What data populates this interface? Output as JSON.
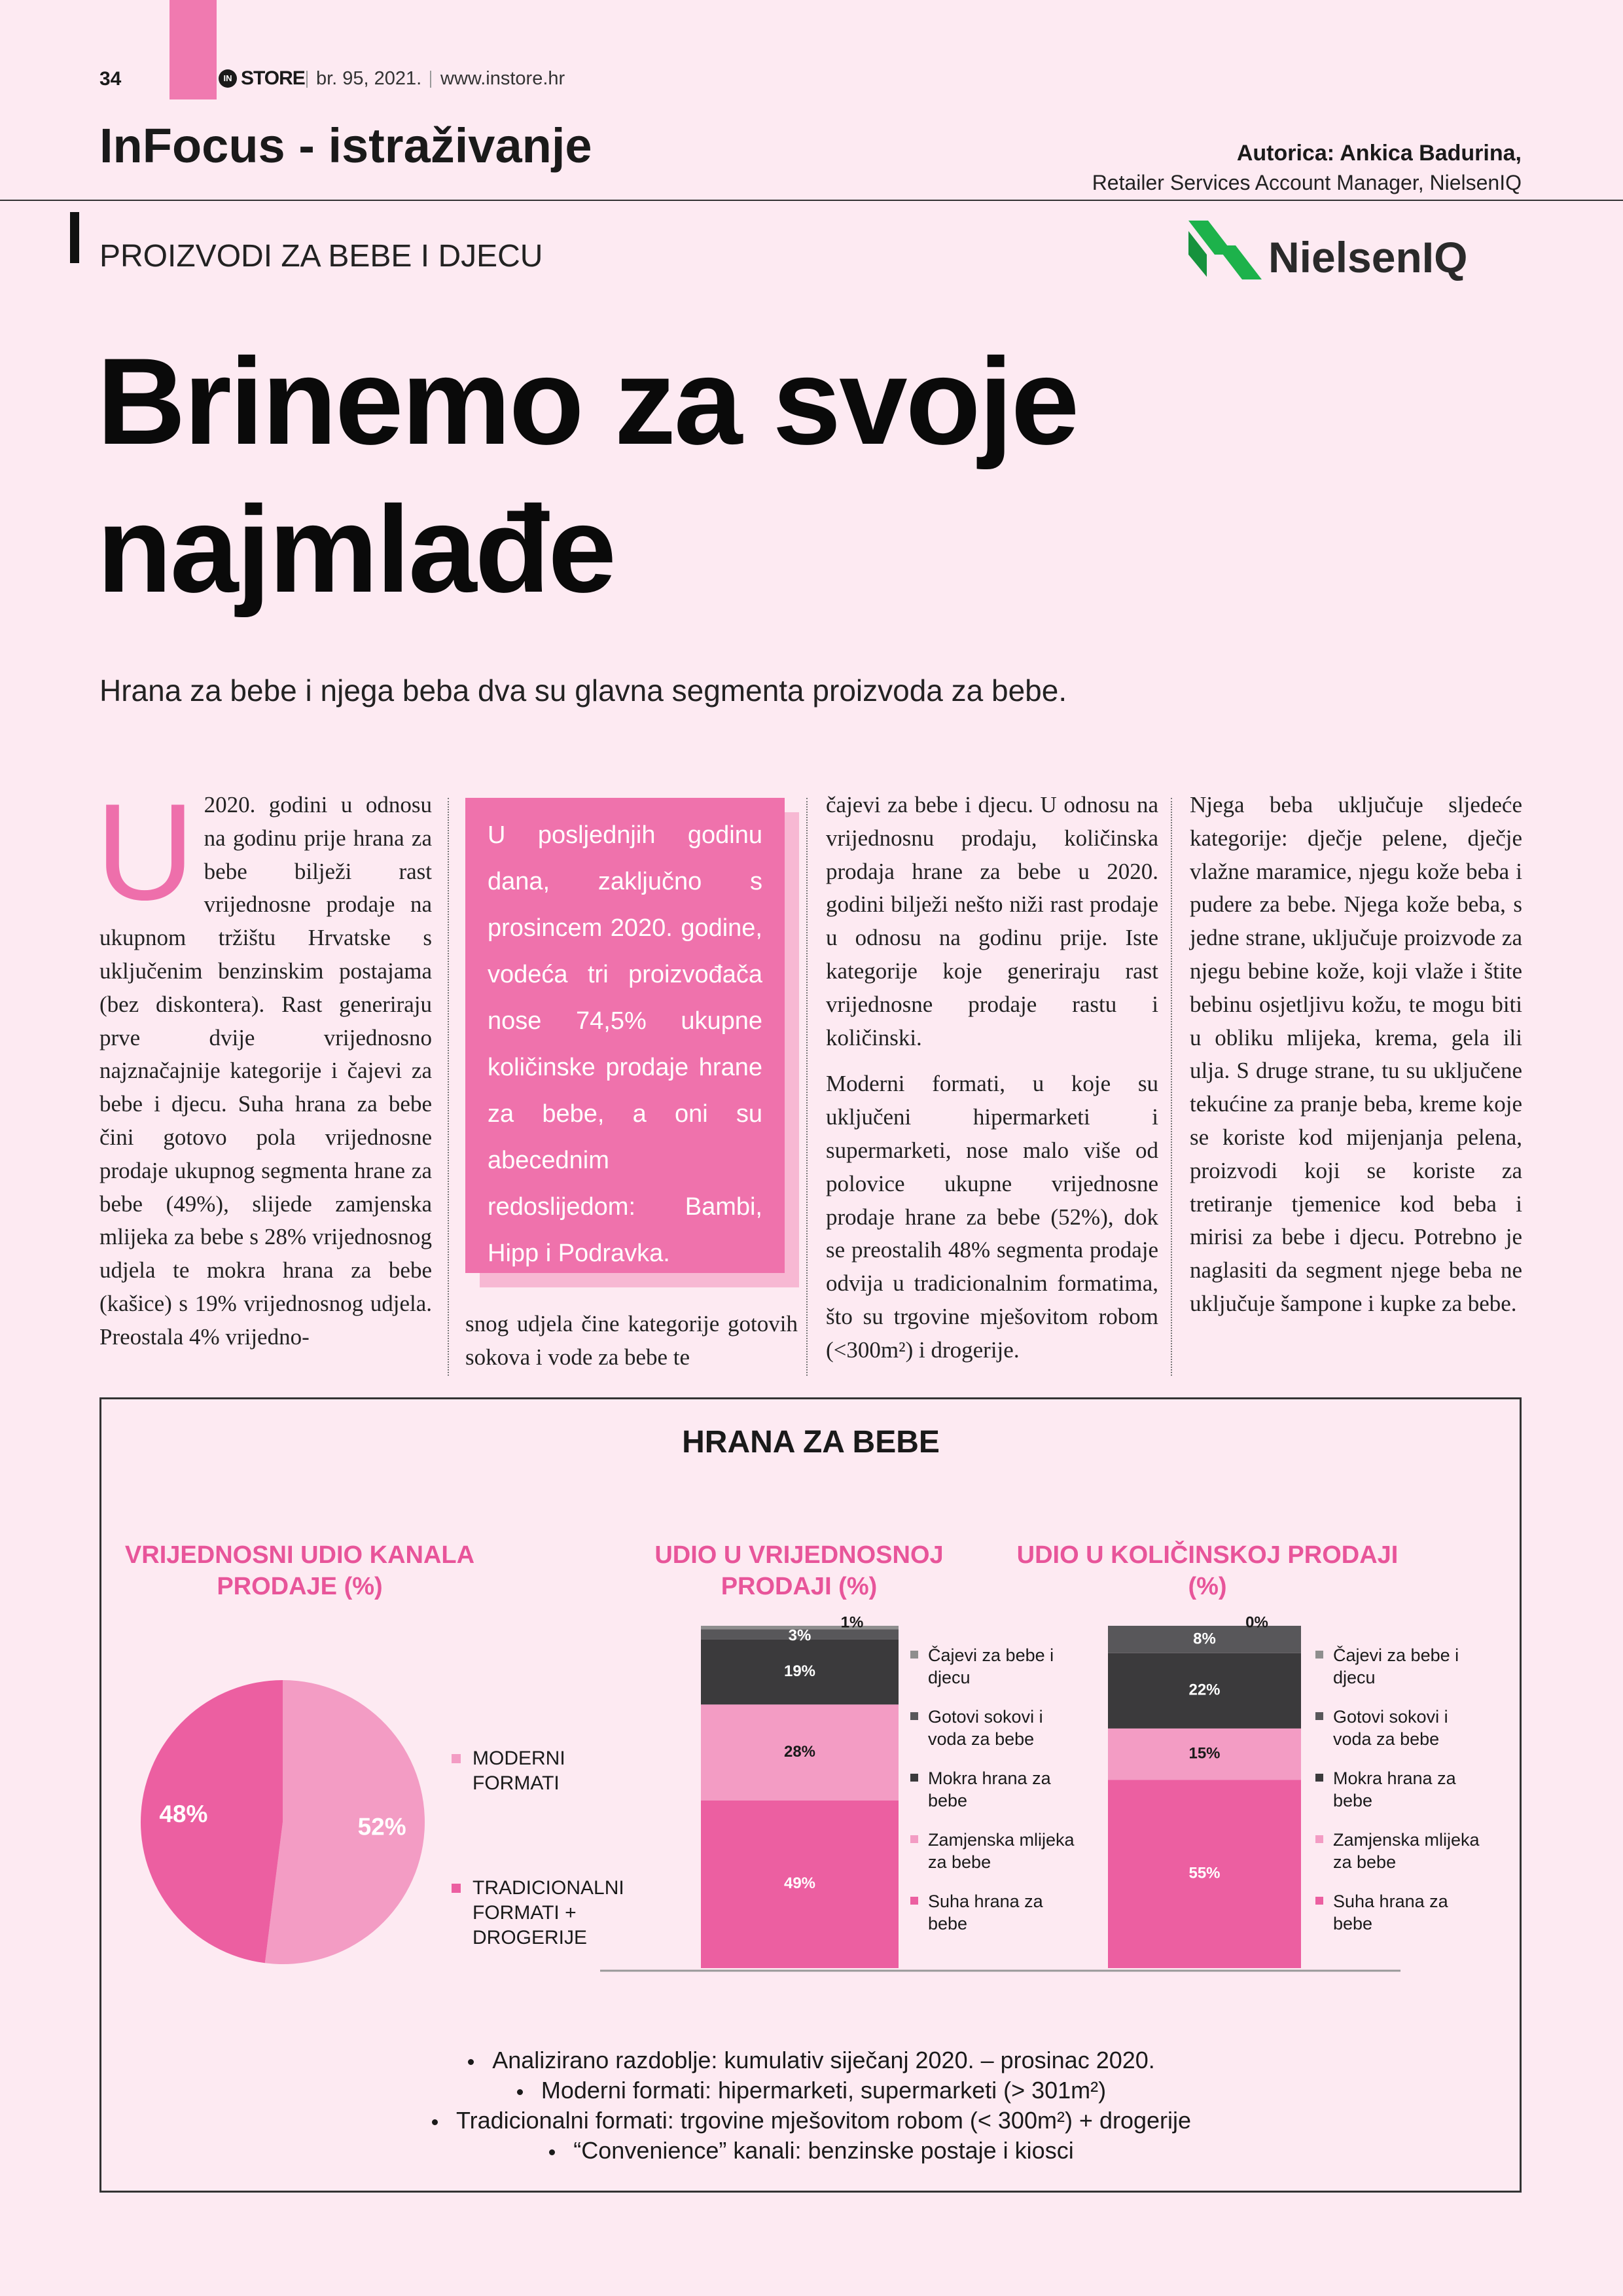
{
  "header": {
    "page": "34",
    "brand_mark": "IN",
    "brand": "STORE",
    "issue": "br. 95, 2021.",
    "url": "www.instore.hr",
    "section": "InFocus - istraživanje",
    "author": "Autorica: Ankica Badurina,",
    "author_role": "Retailer Services Account Manager, NielsenIQ",
    "category": "PROIZVODI ZA BEBE I DJECU",
    "logo": "NielsenIQ"
  },
  "title": "Brinemo za svoje najmlađe",
  "lead": "Hrana za bebe i njega beba dva su glavna segmenta proizvoda za bebe.",
  "columns": [
    {
      "drop_cap": "U",
      "paragraphs": [
        "2020. godini u odnosu na godinu prije hrana za bebe bilježi rast vrijednosne prodaje na ukupnom tržištu Hrvatske s uključenim benzinskim postajama (bez diskontera). Rast generiraju prve dvije vrijednosno najznačajnije kategorije i čajevi za bebe i djecu. Suha hrana za bebe čini gotovo pola vrijednosne prodaje ukupnog segmenta hrane za bebe (49%), slijede zamjenska mlijeka za bebe s 28% vrijednosnog udjela te mokra hrana za bebe (kašice) s 19% vrijednosnog udjela. Preostala 4% vrijedno-"
      ]
    },
    {
      "pullquote": "U posljednjih godinu dana, zaključno s prosincem 2020. godine, vodeća tri proizvođača nose 74,5% ukupne količinske prodaje hrane za bebe, a oni su abecednim redoslijedom: Bambi, Hipp i Podravka.",
      "paragraphs": [
        "snog udjela čine kategorije gotovih sokova i vode za bebe te"
      ]
    },
    {
      "paragraphs": [
        "čajevi za bebe i djecu. U odnosu na vrijednosnu prodaju, količinska prodaja hrane za bebe u 2020. godini bilježi nešto niži rast prodaje u odnosu na godinu prije. Iste kategorije koje generiraju rast vrijednosne prodaje rastu i količinski.",
        "Moderni formati, u koje su uključeni hipermarketi i supermarketi, nose malo više od polovice ukupne vrijednosne prodaje hrane za bebe (52%), dok se preostalih 48% segmenta prodaje odvija u tradicionalnim formatima, što su trgovine mješovitom robom (<300m²) i drogerije."
      ]
    },
    {
      "paragraphs": [
        "Njega beba uključuje sljedeće kategorije: dječje pelene, dječje vlažne maramice, njegu kože beba i pudere za bebe. Njega kože beba, s jedne strane, uključuje proizvode za njegu bebine kože, koji vlaže i štite bebinu osjetljivu kožu, te mogu biti u obliku mlijeka, krema, gela ili ulja. S druge strane, tu su uključene tekućine za pranje beba, kreme koje se koriste kod mijenjanja pelena, proizvodi koji se koriste za tretiranje tjemenice kod beba i mirisi za bebe i djecu. Potrebno je naglasiti da segment njege beba ne uključuje šampone i kupke za bebe."
      ]
    }
  ],
  "infographic": {
    "title": "HRANA ZA BEBE",
    "charts": [
      {
        "type": "pie",
        "title": "VRIJEDNOSNI UDIO KANALA PRODAJE (%)",
        "categories": [
          "MODERNI FORMATI",
          "TRADICIONALNI FORMATI + DROGERIJE"
        ],
        "values": [
          52,
          48
        ],
        "value_labels": [
          "52%",
          "48%"
        ],
        "colors": [
          "#f39cc4",
          "#ec5fa1"
        ]
      },
      {
        "type": "stacked_bar",
        "title": "UDIO U VRIJEDNOSNOJ PRODAJI (%)",
        "series": [
          {
            "name": "Suha hrana za bebe",
            "color": "#ec5fa1",
            "values": [
              49
            ],
            "value_labels": [
              "49%"
            ]
          },
          {
            "name": "Zamjenska mlijeka za bebe",
            "color": "#f39cc4",
            "values": [
              28
            ],
            "value_labels": [
              "28%"
            ]
          },
          {
            "name": "Mokra hrana za bebe",
            "color": "#3b3a3c",
            "values": [
              19
            ],
            "value_labels": [
              "19%"
            ]
          },
          {
            "name": "Gotovi sokovi i voda za bebe",
            "color": "#58575a",
            "values": [
              3
            ],
            "value_labels": [
              "3%"
            ]
          },
          {
            "name": "Čajevi za bebe i djecu",
            "color": "#8e8e8e",
            "values": [
              1
            ],
            "value_labels": [
              "1%"
            ]
          }
        ]
      },
      {
        "type": "stacked_bar",
        "title": "UDIO U KOLIČINSKOJ PRODAJI (%)",
        "series": [
          {
            "name": "Suha hrana za bebe",
            "color": "#ec5fa1",
            "values": [
              55
            ],
            "value_labels": [
              "55%"
            ]
          },
          {
            "name": "Zamjenska mlijeka za bebe",
            "color": "#f39cc4",
            "values": [
              15
            ],
            "value_labels": [
              "15%"
            ]
          },
          {
            "name": "Mokra hrana za bebe",
            "color": "#3b3a3c",
            "values": [
              22
            ],
            "value_labels": [
              "22%"
            ]
          },
          {
            "name": "Gotovi sokovi i voda za bebe",
            "color": "#58575a",
            "values": [
              8
            ],
            "value_labels": [
              "8%"
            ]
          },
          {
            "name": "Čajevi za bebe i djecu",
            "color": "#8e8e8e",
            "values": [
              0
            ],
            "value_labels": [
              "0%"
            ]
          }
        ]
      }
    ],
    "notes": [
      "Analizirano razdoblje: kumulativ siječanj 2020. – prosinac 2020.",
      "Moderni formati: hipermarketi, supermarketi (> 301m²)",
      "Tradicionalni formati: trgovine mješovitom robom (< 300m²) + drogerije",
      "“Convenience” kanali: benzinske postaje i kiosci"
    ]
  }
}
